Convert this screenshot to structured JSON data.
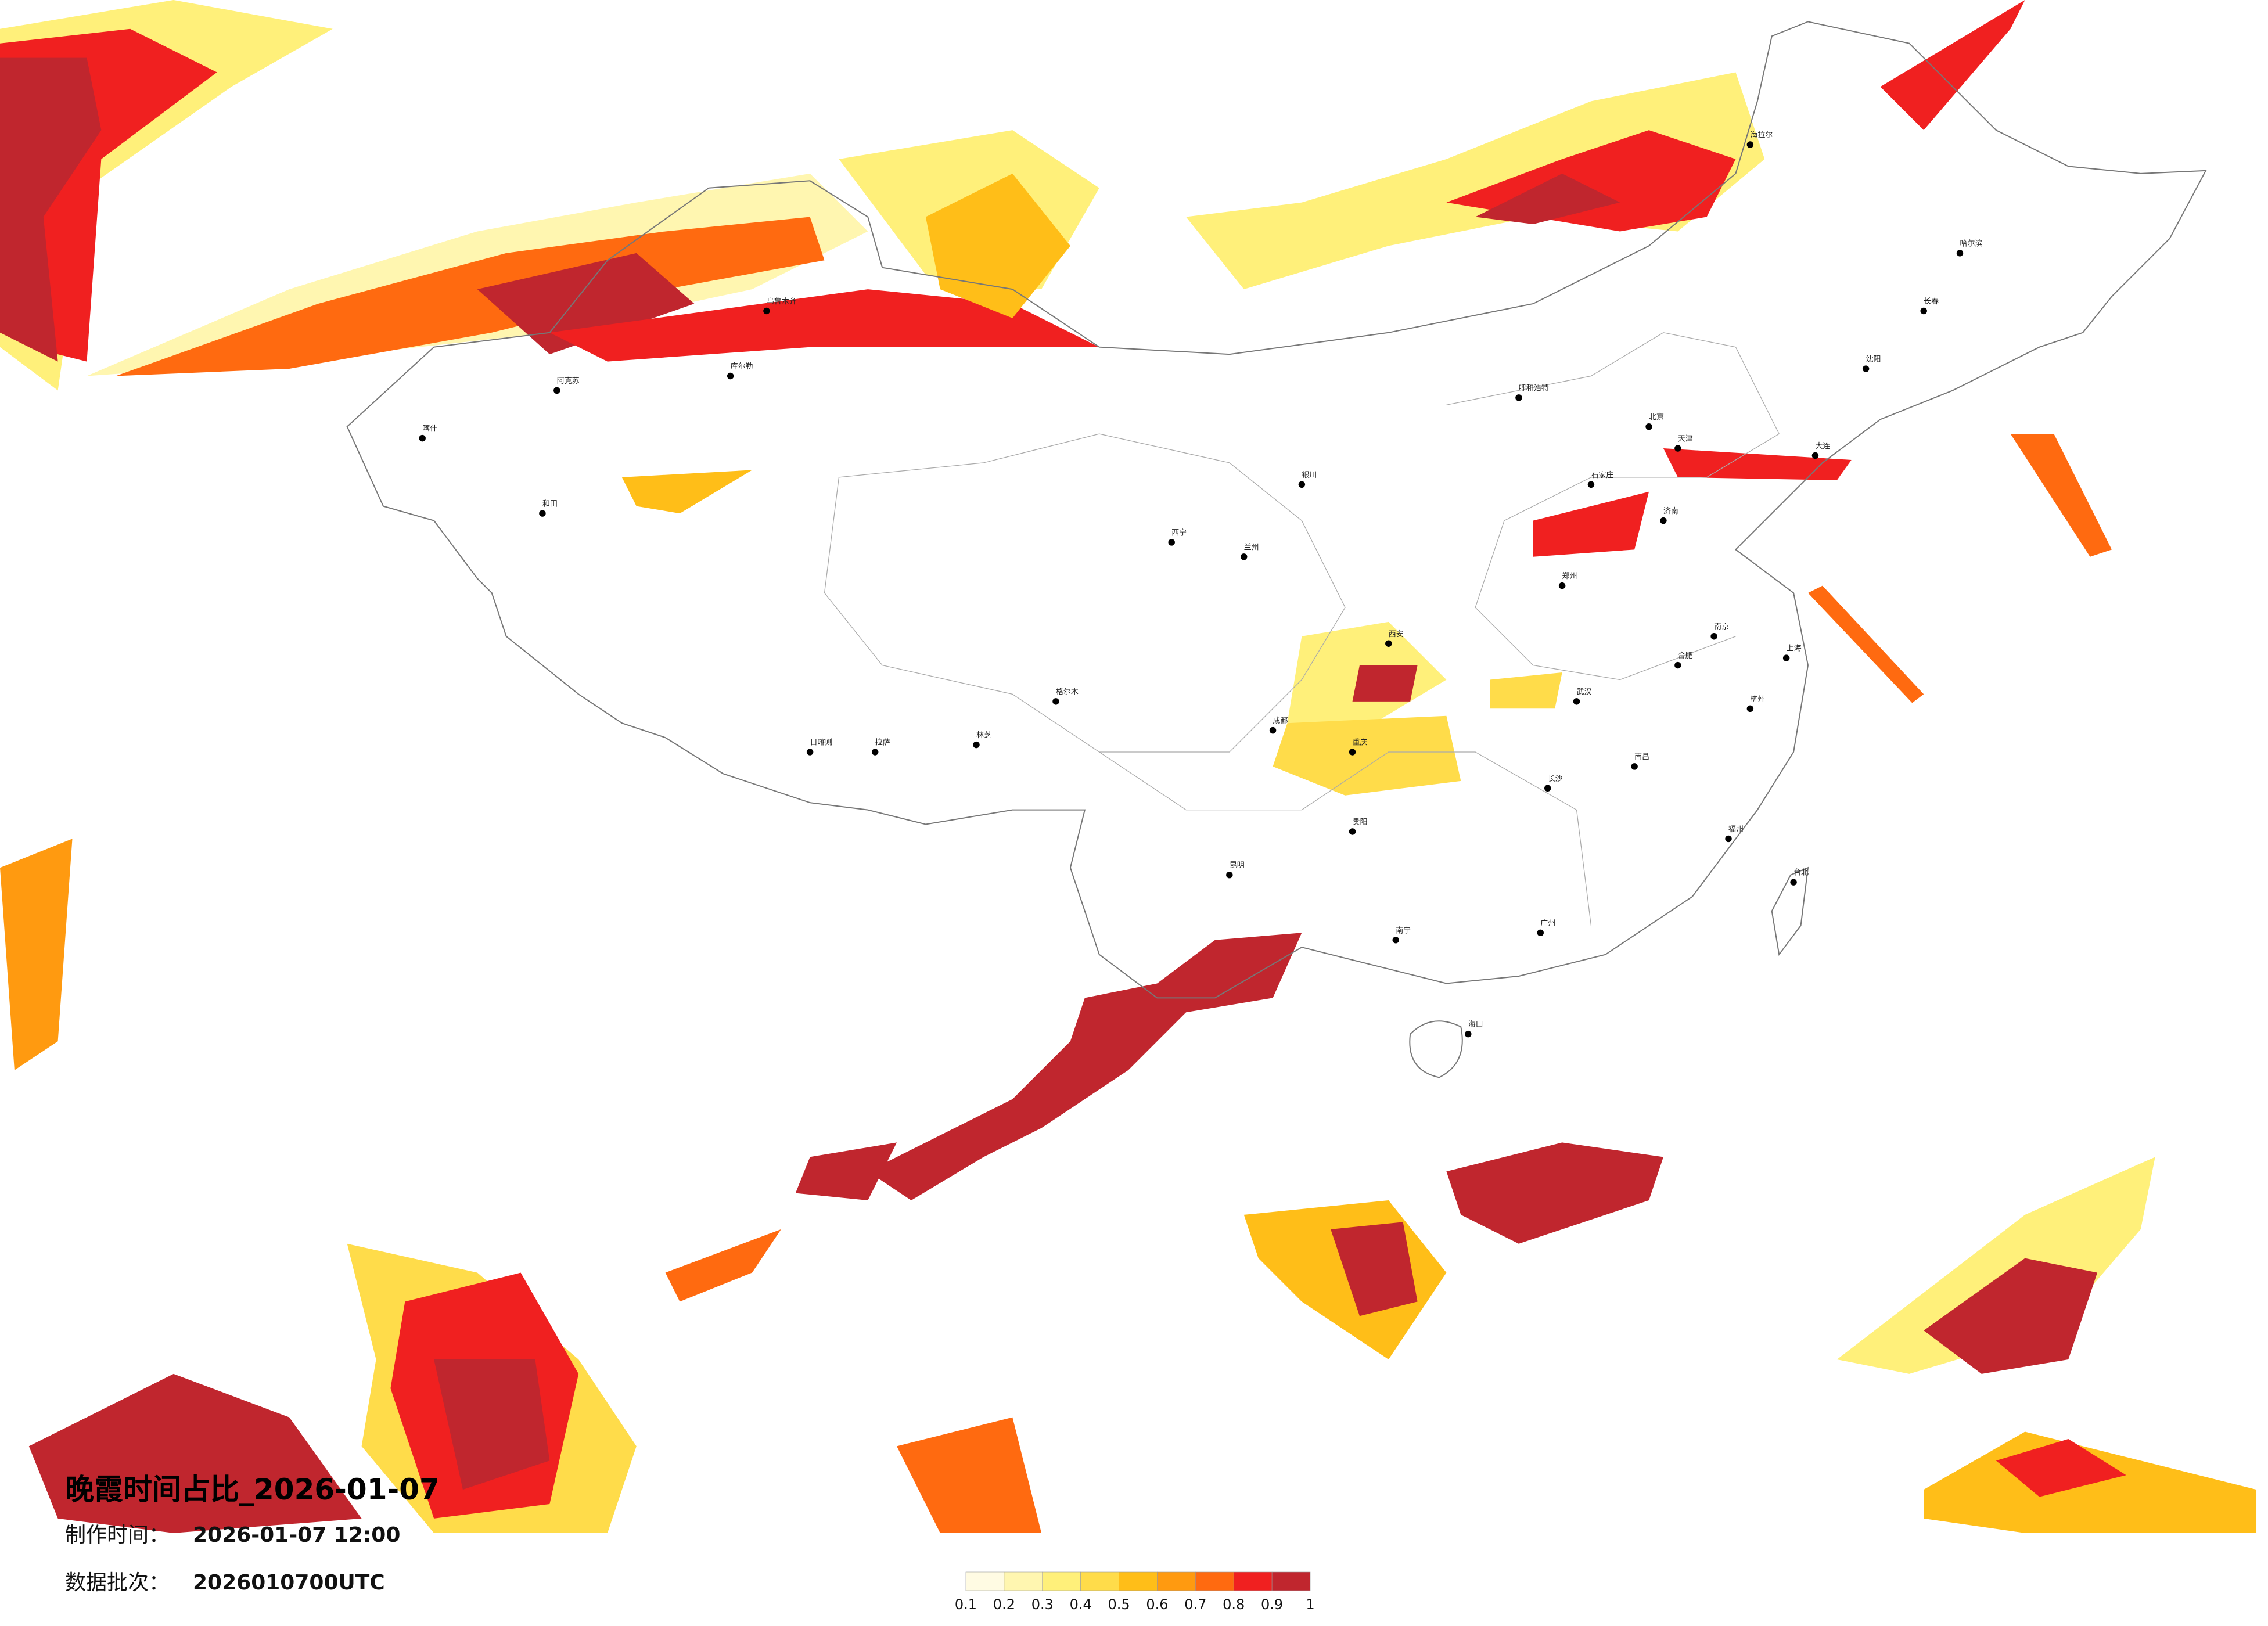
{
  "title": "晚霞时间占比_2026-01-07",
  "info": [
    {
      "label": "制作时间：",
      "value": "2026-01-07 12:00"
    },
    {
      "label": "数据批次：",
      "value": "2026010700UTC"
    }
  ],
  "legend": {
    "ticks": [
      0.1,
      0.2,
      0.3,
      0.4,
      0.5,
      0.6,
      0.7,
      0.8,
      0.9,
      1
    ],
    "colors": [
      "#fffbe3",
      "#fff6b0",
      "#fff07a",
      "#ffdc4a",
      "#ffbe18",
      "#ff9a10",
      "#ff6a10",
      "#f02020",
      "#c0262e"
    ]
  },
  "cities": [
    "呼和浩特",
    "哈尔滨",
    "长春",
    "沈阳",
    "大连",
    "北京",
    "天津",
    "石家庄",
    "济南",
    "郑州",
    "西安",
    "兰州",
    "西宁",
    "银川",
    "乌鲁木齐",
    "拉萨",
    "成都",
    "重庆",
    "贵阳",
    "昆明",
    "南宁",
    "广州",
    "长沙",
    "武汉",
    "南昌",
    "合肥",
    "南京",
    "上海",
    "杭州",
    "福州",
    "海口",
    "台北",
    "海拉尔",
    "和田",
    "喀什",
    "阿克苏",
    "格尔木",
    "库尔勒",
    "日喀则",
    "林芝"
  ]
}
